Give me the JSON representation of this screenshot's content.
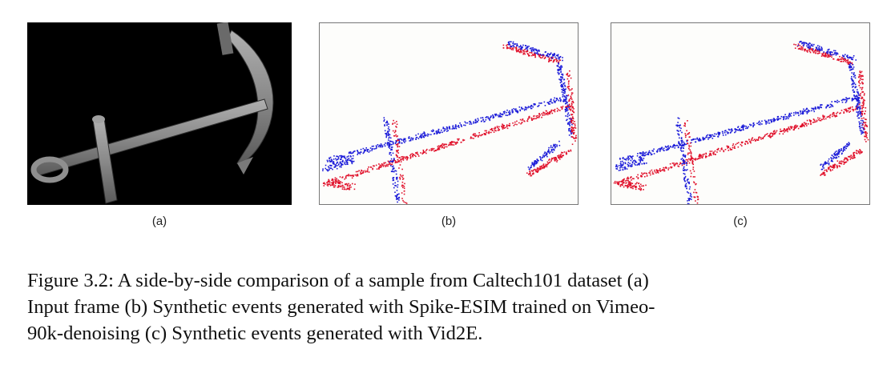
{
  "figure": {
    "subfigures": [
      {
        "id": "a",
        "label": "(a)",
        "render": "grayscale-input-frame"
      },
      {
        "id": "b",
        "label": "(b)",
        "render": "event-scatter"
      },
      {
        "id": "c",
        "label": "(c)",
        "render": "event-scatter"
      }
    ],
    "caption_lines": [
      "Figure 3.2: A side-by-side comparison of a sample from Caltech101 dataset (a)",
      "Input frame (b) Synthetic events generated with Spike-ESIM trained on Vimeo-",
      "90k-denoising (c) Synthetic events generated with Vid2E."
    ],
    "colors": {
      "positive_events": "#e0102a",
      "negative_events": "#1a1ad8",
      "event_background": "#fdfdfb",
      "input_background": "#000000",
      "anchor_gray": "#8a8a8a"
    }
  }
}
